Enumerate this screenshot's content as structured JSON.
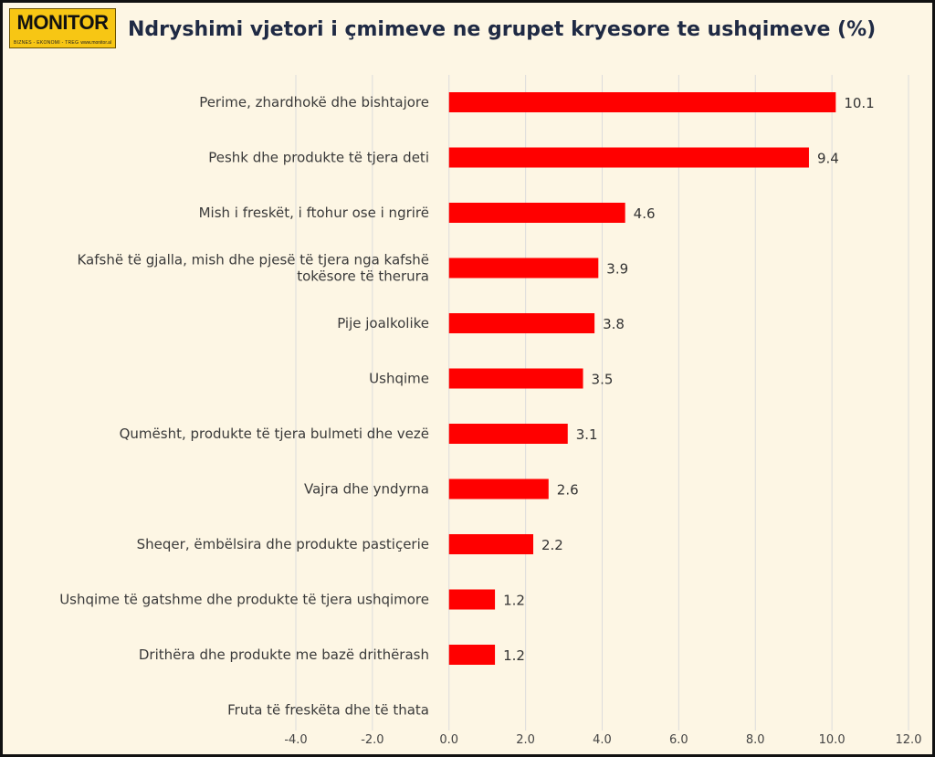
{
  "logo": {
    "name": "MONITOR",
    "tagline": "BIZNES - EKONOMI - TREG",
    "url": "www.monitor.al"
  },
  "chart_data": {
    "type": "bar",
    "orientation": "horizontal",
    "title": "Ndryshimi vjetori i çmimeve ne grupet kryesore te ushqimeve (%)",
    "xlabel": "",
    "ylabel": "",
    "xlim": [
      -4.0,
      12.0
    ],
    "xticks": [
      "-4.0",
      "-2.0",
      "0.0",
      "2.0",
      "4.0",
      "6.0",
      "8.0",
      "10.0",
      "12.0"
    ],
    "grid": "vertical",
    "bar_color": "#ff0000",
    "categories": [
      "Perime, zhardhokë dhe bishtajore",
      "Peshk dhe produkte të tjera deti",
      "Mish i freskët, i ftohur ose i ngrirë",
      "Kafshë të gjalla, mish dhe pjesë të tjera nga kafshë tokësore të therura",
      "Pije joalkolike",
      "Ushqime",
      "Qumësht, produkte të tjera bulmeti dhe vezë",
      "Vajra dhe yndyrna",
      "Sheqer, ëmbëlsira dhe produkte pastiçerie",
      "Ushqime të gatshme dhe produkte të tjera ushqimore",
      "Drithëra dhe produkte me bazë drithërash",
      "Fruta të freskëta dhe të thata"
    ],
    "values": [
      10.1,
      9.4,
      4.6,
      3.9,
      3.8,
      3.5,
      3.1,
      2.6,
      2.2,
      1.2,
      1.2,
      null
    ],
    "data_labels": [
      "10.1",
      "9.4",
      "4.6",
      "3.9",
      "3.8",
      "3.5",
      "3.1",
      "2.6",
      "2.2",
      "1.2",
      "1.2",
      ""
    ]
  }
}
